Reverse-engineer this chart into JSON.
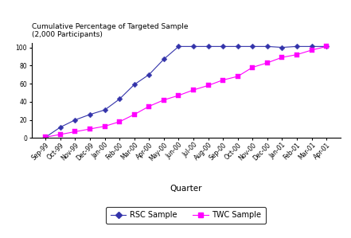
{
  "quarters": [
    "Sep-99",
    "Oct-99",
    "Nov-99",
    "Dec-99",
    "Jan-00",
    "Feb-00",
    "Mar-00",
    "Apr-00",
    "May-00",
    "Jun-00",
    "Jul-00",
    "Aug-00",
    "Sep-00",
    "Oct-00",
    "Nov-00",
    "Dec-00",
    "Jan-01",
    "Feb-01",
    "Mar-01",
    "Apr-01"
  ],
  "rsc_values": [
    1,
    12,
    20,
    26,
    31,
    43,
    59,
    70,
    87,
    101,
    101,
    101,
    101,
    101,
    101,
    101,
    100,
    101,
    101,
    101
  ],
  "twc_values": [
    1,
    4,
    7,
    10,
    13,
    18,
    26,
    35,
    42,
    47,
    53,
    58,
    64,
    68,
    78,
    83,
    89,
    92,
    97,
    101
  ],
  "rsc_color": "#3333aa",
  "twc_color": "#ff00ff",
  "title_line1": "Cumulative Percentage of Targeted Sample",
  "title_line2": "(2,000 Participants)",
  "xlabel": "Quarter",
  "ylim": [
    0,
    105
  ],
  "yticks": [
    0,
    20,
    40,
    60,
    80,
    100
  ],
  "rsc_label": "RSC Sample",
  "twc_label": "TWC Sample",
  "bg_color": "#ffffff",
  "title_fontsize": 6.5,
  "axis_label_fontsize": 7.5,
  "tick_fontsize": 5.5,
  "legend_fontsize": 7
}
